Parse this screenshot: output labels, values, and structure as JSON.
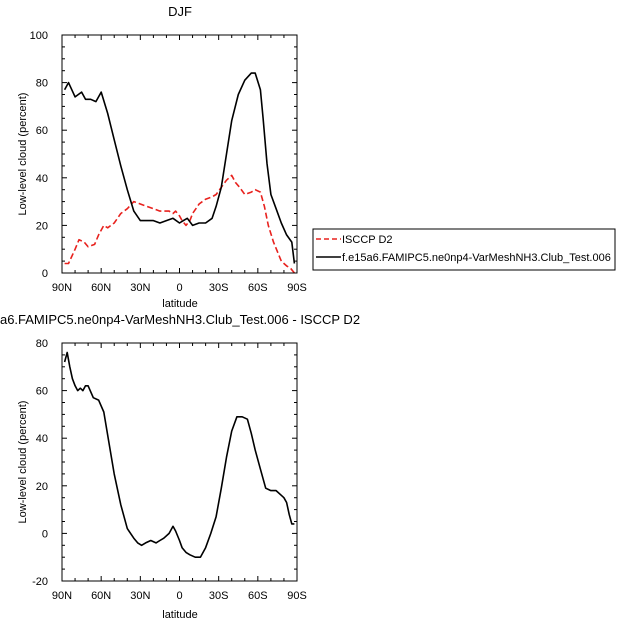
{
  "chart_data": [
    {
      "type": "line",
      "title": "DJF",
      "xlabel": "latitude",
      "ylabel": "Low-level cloud (percent)",
      "xlim": [
        90,
        -90
      ],
      "ylim": [
        0,
        100
      ],
      "x_ticks": [
        {
          "value": 90,
          "label": "90N"
        },
        {
          "value": 60,
          "label": "60N"
        },
        {
          "value": 30,
          "label": "30N"
        },
        {
          "value": 0,
          "label": "0"
        },
        {
          "value": -30,
          "label": "30S"
        },
        {
          "value": -60,
          "label": "60S"
        },
        {
          "value": -90,
          "label": "90S"
        }
      ],
      "y_ticks": [
        0,
        20,
        40,
        60,
        80,
        100
      ],
      "grid": false,
      "legend_position": "right",
      "series": [
        {
          "name": "ISCCP D2",
          "color": "#e8221e",
          "dash": "dashed",
          "x": [
            88,
            85,
            80,
            77,
            73,
            70,
            65,
            62,
            58,
            55,
            50,
            45,
            40,
            35,
            30,
            25,
            20,
            15,
            10,
            8,
            5,
            3,
            0,
            -2,
            -5,
            -8,
            -10,
            -15,
            -20,
            -25,
            -28,
            -32,
            -36,
            -40,
            -43,
            -46,
            -50,
            -55,
            -58,
            -62,
            -65,
            -68,
            -72,
            -75,
            -78,
            -82,
            -85,
            -88
          ],
          "y": [
            4,
            4,
            10,
            14,
            13,
            11,
            12,
            16,
            20,
            19,
            21,
            25,
            27,
            30,
            29,
            28,
            27,
            26,
            26,
            26,
            25,
            26,
            24,
            22,
            20,
            22,
            25,
            29,
            31,
            32,
            33,
            36,
            39,
            41,
            38,
            36,
            33,
            34,
            35,
            34,
            28,
            20,
            13,
            9,
            5,
            3,
            2,
            0
          ]
        },
        {
          "name": "f.e15a6.FAMIPC5.ne0np4-VarMeshNH3.Club_Test.006",
          "color": "#000000",
          "dash": "solid",
          "x": [
            88,
            85,
            80,
            75,
            72,
            68,
            64,
            60,
            55,
            50,
            45,
            40,
            35,
            30,
            25,
            20,
            15,
            10,
            5,
            0,
            -3,
            -6,
            -10,
            -15,
            -20,
            -25,
            -28,
            -32,
            -36,
            -40,
            -45,
            -50,
            -55,
            -58,
            -62,
            -64,
            -67,
            -70,
            -74,
            -78,
            -82,
            -86,
            -88
          ],
          "y": [
            77,
            80,
            74,
            76,
            73,
            73,
            72,
            76,
            67,
            56,
            45,
            35,
            26,
            22,
            22,
            22,
            21,
            22,
            23,
            21,
            22,
            23,
            20,
            21,
            21,
            23,
            28,
            36,
            50,
            64,
            75,
            81,
            84,
            84,
            77,
            65,
            46,
            33,
            27,
            21,
            16,
            13,
            4
          ]
        }
      ]
    },
    {
      "type": "line",
      "title": "a6.FAMIPC5.ne0np4-VarMeshNH3.Club_Test.006 - ISCCP D2",
      "xlabel": "latitude",
      "ylabel": "Low-level cloud (percent)",
      "xlim": [
        90,
        -90
      ],
      "ylim": [
        -20,
        80
      ],
      "x_ticks": [
        {
          "value": 90,
          "label": "90N"
        },
        {
          "value": 60,
          "label": "60N"
        },
        {
          "value": 30,
          "label": "30N"
        },
        {
          "value": 0,
          "label": "0"
        },
        {
          "value": -30,
          "label": "30S"
        },
        {
          "value": -60,
          "label": "60S"
        },
        {
          "value": -90,
          "label": "90S"
        }
      ],
      "y_ticks": [
        -20,
        0,
        20,
        40,
        60,
        80
      ],
      "grid": false,
      "series": [
        {
          "color": "#000000",
          "dash": "solid",
          "x": [
            88,
            86,
            84,
            82,
            80,
            78,
            76,
            74,
            72,
            70,
            66,
            62,
            58,
            54,
            50,
            45,
            40,
            35,
            32,
            29,
            26,
            22,
            18,
            15,
            12,
            8,
            5,
            3,
            0,
            -2,
            -5,
            -8,
            -12,
            -16,
            -20,
            -24,
            -28,
            -32,
            -36,
            -40,
            -44,
            -48,
            -52,
            -55,
            -58,
            -62,
            -66,
            -70,
            -74,
            -78,
            -80,
            -82,
            -84,
            -86,
            -88
          ],
          "y": [
            72,
            76,
            70,
            65,
            62,
            60,
            61,
            60,
            62,
            62,
            57,
            56,
            51,
            38,
            25,
            12,
            2,
            -2,
            -4,
            -5,
            -4,
            -3,
            -4,
            -3,
            -2,
            0,
            3,
            1,
            -3,
            -6,
            -8,
            -9,
            -10,
            -10,
            -6,
            0,
            7,
            19,
            32,
            43,
            49,
            49,
            48,
            42,
            35,
            27,
            19,
            18,
            18,
            16,
            15,
            13,
            8,
            4,
            4
          ]
        }
      ]
    }
  ]
}
